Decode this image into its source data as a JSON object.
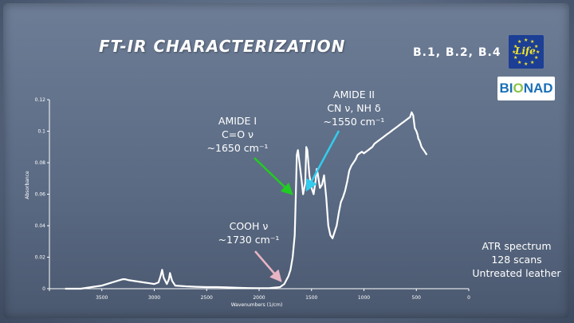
{
  "slide": {
    "title": "FT-IR CHARACTERIZATION",
    "samples": "B.1, B.2, B.4",
    "eu_logo_text": "Life",
    "bionad_logo": {
      "p1": "BI",
      "p2": "O",
      "p3": "NAD"
    }
  },
  "annotations": {
    "amide1": {
      "l1": "AMIDE I",
      "l2": "C=O ν",
      "l3": "~1650 cm⁻¹",
      "arrow_color": "#22cc22"
    },
    "amide2": {
      "l1": "AMIDE II",
      "l2": "CN ν, NH δ",
      "l3": "~1550 cm⁻¹",
      "arrow_color": "#33ccee"
    },
    "cooh": {
      "l1": "COOH ν",
      "l2": "~1730 cm⁻¹",
      "arrow_color": "#e8b4c4"
    },
    "spectrum_info": {
      "l1": "ATR spectrum",
      "l2": "128 scans",
      "l3": "Untreated leather"
    }
  },
  "chart_data": {
    "type": "line",
    "xlabel": "Wavenumbers (1/cm)",
    "ylabel": "Absorbance",
    "xlim": [
      4000,
      0
    ],
    "ylim": [
      0,
      0.12
    ],
    "x_ticks": [
      4000,
      3500,
      3000,
      2500,
      2000,
      1500,
      1000,
      500,
      0
    ],
    "x_tick_labels": [
      "",
      "3500",
      "3000",
      "2500",
      "2000",
      "1500",
      "1000",
      "500",
      "0"
    ],
    "y_ticks": [
      0,
      0.02,
      0.04,
      0.06,
      0.08,
      0.1,
      0.12
    ],
    "y_tick_labels": [
      "0",
      "0.02",
      "0.04",
      "0.06",
      "0.08",
      "0.1",
      "0.12"
    ],
    "line_color": "#ffffff",
    "series": [
      {
        "x": [
          3850,
          3700,
          3600,
          3500,
          3400,
          3350,
          3300,
          3280,
          3250,
          3200,
          3150,
          3100,
          3050,
          3000,
          2960,
          2940,
          2925,
          2910,
          2880,
          2860,
          2850,
          2830,
          2800,
          2700,
          2600,
          2500,
          2400,
          2300,
          2200,
          2100,
          2000,
          1900,
          1800,
          1760,
          1720,
          1700,
          1680,
          1660,
          1650,
          1640,
          1630,
          1600,
          1580,
          1560,
          1550,
          1540,
          1520,
          1500,
          1480,
          1460,
          1450,
          1440,
          1420,
          1400,
          1380,
          1360,
          1340,
          1320,
          1300,
          1280,
          1260,
          1240,
          1220,
          1200,
          1180,
          1160,
          1140,
          1120,
          1100,
          1080,
          1060,
          1040,
          1020,
          1000,
          980,
          960,
          940,
          920,
          900,
          880,
          860,
          840,
          820,
          800,
          780,
          760,
          740,
          720,
          700,
          680,
          660,
          640,
          620,
          600,
          580,
          560,
          545,
          530,
          515,
          500,
          490,
          480,
          470,
          460,
          450,
          440,
          430,
          420,
          400
        ],
        "y": [
          0.0,
          0.0,
          0.001,
          0.002,
          0.004,
          0.005,
          0.006,
          0.006,
          0.0055,
          0.005,
          0.0045,
          0.004,
          0.0035,
          0.003,
          0.004,
          0.008,
          0.012,
          0.007,
          0.003,
          0.006,
          0.01,
          0.005,
          0.002,
          0.0015,
          0.0012,
          0.001,
          0.001,
          0.0008,
          0.0006,
          0.0004,
          0.0003,
          0.0004,
          0.001,
          0.003,
          0.008,
          0.012,
          0.02,
          0.034,
          0.058,
          0.085,
          0.088,
          0.072,
          0.06,
          0.067,
          0.09,
          0.088,
          0.072,
          0.064,
          0.06,
          0.069,
          0.076,
          0.073,
          0.064,
          0.066,
          0.072,
          0.058,
          0.04,
          0.034,
          0.032,
          0.036,
          0.04,
          0.048,
          0.055,
          0.058,
          0.062,
          0.068,
          0.075,
          0.078,
          0.08,
          0.082,
          0.085,
          0.086,
          0.087,
          0.086,
          0.087,
          0.088,
          0.089,
          0.09,
          0.092,
          0.093,
          0.094,
          0.095,
          0.096,
          0.097,
          0.098,
          0.099,
          0.1,
          0.101,
          0.102,
          0.103,
          0.104,
          0.105,
          0.106,
          0.107,
          0.108,
          0.109,
          0.112,
          0.11,
          0.102,
          0.1,
          0.098,
          0.095,
          0.094,
          0.092,
          0.09,
          0.089,
          0.088,
          0.087,
          0.085
        ]
      }
    ]
  }
}
